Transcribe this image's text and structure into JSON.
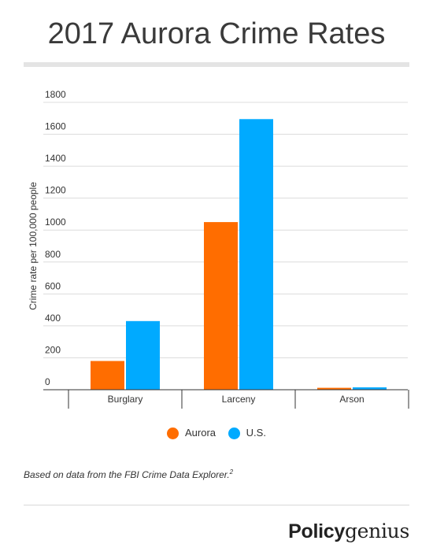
{
  "header": {
    "title": "2017 Aurora Crime Rates"
  },
  "footer": {
    "source_text": "Based on data from the FBI Crime Data Explorer.",
    "source_footnote": "2",
    "brand_bold": "Policy",
    "brand_light": "genius"
  },
  "colors": {
    "aurora": "#ff6d00",
    "us": "#00aaff",
    "grid": "#dcdcdc",
    "axis": "#333333"
  },
  "chart_data": {
    "type": "bar",
    "categories": [
      "Burglary",
      "Larceny",
      "Arson"
    ],
    "series": [
      {
        "name": "Aurora",
        "values": [
          180,
          1050,
          12
        ]
      },
      {
        "name": "U.S.",
        "values": [
          430,
          1695,
          15
        ]
      }
    ],
    "ylabel": "Crime rate per 100,000 people",
    "xlabel": "",
    "ylim": [
      0,
      1800
    ],
    "yticks": [
      0,
      200,
      400,
      600,
      800,
      1000,
      1200,
      1400,
      1600,
      1800
    ],
    "grid": true,
    "legend_position": "bottom"
  }
}
